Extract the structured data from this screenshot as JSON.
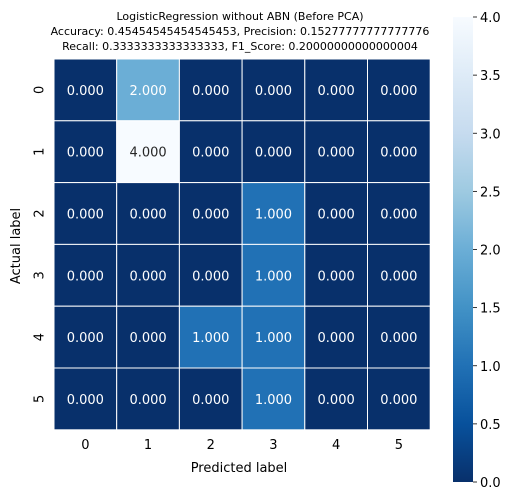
{
  "chart_data": {
    "type": "heatmap",
    "title_lines": [
      "LogisticRegression without ABN (Before PCA)",
      "Accuracy: 0.45454545454545453, Precision: 0.15277777777777776",
      "Recall: 0.3333333333333333, F1_Score: 0.20000000000000004"
    ],
    "xlabel": "Predicted label",
    "ylabel": "Actual label",
    "x_categories": [
      "0",
      "1",
      "2",
      "3",
      "4",
      "5"
    ],
    "y_categories": [
      "0",
      "1",
      "2",
      "3",
      "4",
      "5"
    ],
    "values": [
      [
        0,
        2,
        0,
        0,
        0,
        0
      ],
      [
        0,
        4,
        0,
        0,
        0,
        0
      ],
      [
        0,
        0,
        0,
        1,
        0,
        0
      ],
      [
        0,
        0,
        0,
        1,
        0,
        0
      ],
      [
        0,
        0,
        1,
        1,
        0,
        0
      ],
      [
        0,
        0,
        0,
        1,
        0,
        0
      ]
    ],
    "cell_labels": [
      [
        "0.000",
        "2.000",
        "0.000",
        "0.000",
        "0.000",
        "0.000"
      ],
      [
        "0.000",
        "4.000",
        "0.000",
        "0.000",
        "0.000",
        "0.000"
      ],
      [
        "0.000",
        "0.000",
        "0.000",
        "1.000",
        "0.000",
        "0.000"
      ],
      [
        "0.000",
        "0.000",
        "0.000",
        "1.000",
        "0.000",
        "0.000"
      ],
      [
        "0.000",
        "0.000",
        "1.000",
        "1.000",
        "0.000",
        "0.000"
      ],
      [
        "0.000",
        "0.000",
        "0.000",
        "1.000",
        "0.000",
        "0.000"
      ]
    ],
    "colormap": "Blues_r",
    "vmin": 0,
    "vmax": 4,
    "colorbar_ticks": [
      "0.0",
      "0.5",
      "1.0",
      "1.5",
      "2.0",
      "2.5",
      "3.0",
      "3.5",
      "4.0"
    ],
    "colors": {
      "low": "#08306b",
      "mid": "#2171b5",
      "high": "#f7fbff",
      "grid_line": "#ffffff"
    }
  }
}
